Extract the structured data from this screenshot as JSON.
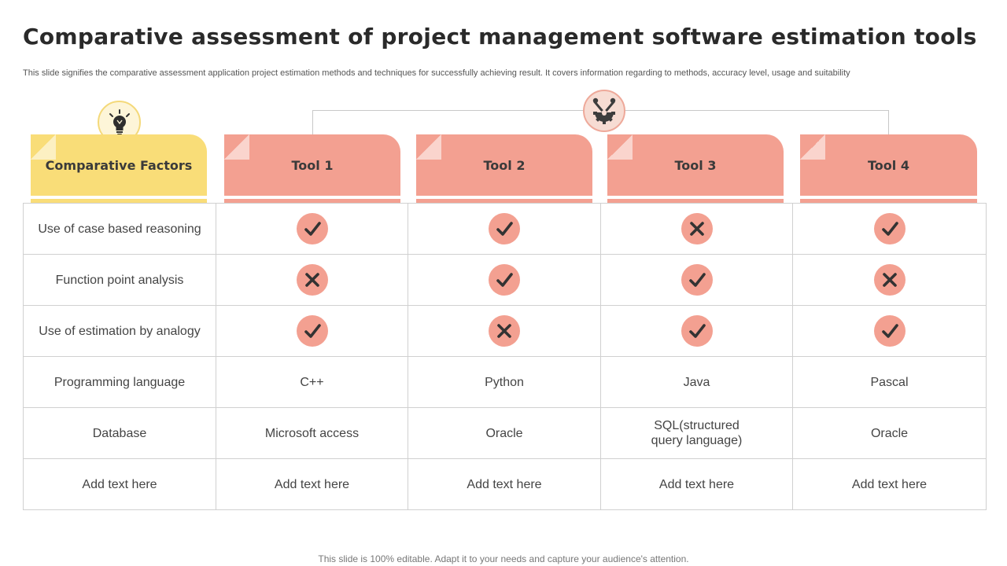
{
  "slide": {
    "title": "Comparative assessment of project management software estimation tools",
    "subtitle": "This slide signifies the comparative assessment application project estimation methods and techniques for successfully achieving result. It covers information regarding to methods, accuracy level, usage and suitability",
    "footer": "This slide is 100% editable. Adapt it to your needs and capture your audience's attention."
  },
  "icons": {
    "factor_badge": "lightbulb-icon",
    "tools_badge": "gear-tools-icon",
    "yes": "check-icon",
    "no": "cross-icon"
  },
  "colors": {
    "factor_header": "#f9dd78",
    "tool_header": "#f3a091",
    "mark_fill": "#f3a091",
    "mark_glyph": "#333333"
  },
  "table": {
    "headers": [
      "Comparative Factors",
      "Tool 1",
      "Tool 2",
      "Tool 3",
      "Tool 4"
    ],
    "rows": [
      {
        "factor": "Use of case based reasoning",
        "type": "mark",
        "values": [
          true,
          true,
          false,
          true
        ]
      },
      {
        "factor": "Function point analysis",
        "type": "mark",
        "values": [
          false,
          true,
          true,
          false
        ]
      },
      {
        "factor": "Use of estimation by analogy",
        "type": "mark",
        "values": [
          true,
          false,
          true,
          true
        ]
      },
      {
        "factor": "Programming language",
        "type": "text",
        "values": [
          "C++",
          "Python",
          "Java",
          "Pascal"
        ]
      },
      {
        "factor": "Database",
        "type": "text",
        "values": [
          "Microsoft access",
          "Oracle",
          "SQL(structured\nquery language)",
          "Oracle"
        ]
      },
      {
        "factor": "Add text here",
        "type": "text",
        "values": [
          "Add text here",
          "Add text here",
          "Add text here",
          "Add text here"
        ]
      }
    ]
  }
}
